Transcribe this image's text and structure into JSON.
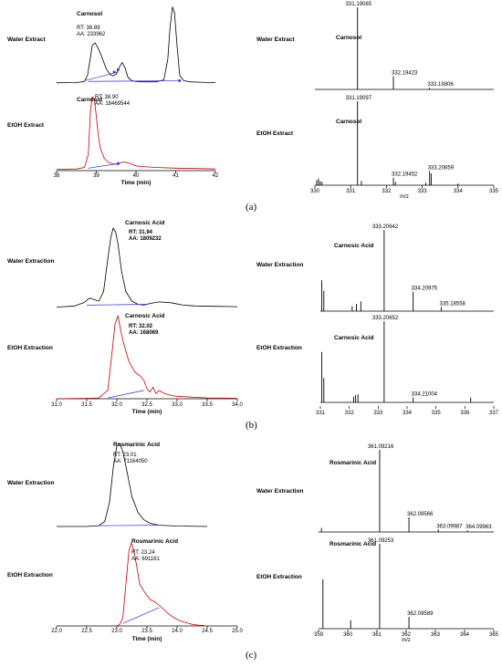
{
  "panel_letters": [
    "(a)",
    "(b)",
    "(c)"
  ],
  "chart_data": [
    {
      "type": "line",
      "panel": "a-chromatogram",
      "xlabel": "Time (min)",
      "xlim": [
        38,
        42
      ],
      "x_ticks": [
        38,
        39,
        40,
        41,
        42
      ],
      "traces": [
        {
          "name": "Water Extract",
          "color": "#000000",
          "label": "Carnosol",
          "rt_text": "RT: 38.89",
          "aa_text": "AA: 233962",
          "x": [
            38.0,
            38.5,
            38.7,
            38.78,
            38.85,
            38.9,
            38.97,
            39.05,
            39.15,
            39.25,
            39.35,
            39.42,
            39.5,
            39.58,
            39.65,
            39.72,
            39.8,
            39.9,
            40.0,
            40.2,
            40.5,
            40.7,
            40.8,
            40.86,
            40.92,
            40.97,
            41.03,
            41.1,
            41.2,
            41.35,
            41.6,
            42.0
          ],
          "y": [
            0.3,
            0.6,
            2,
            10,
            32,
            48,
            51,
            44,
            32,
            18,
            11,
            9,
            11,
            20,
            26,
            20,
            7,
            3,
            2,
            1.5,
            1.5,
            4,
            30,
            72,
            97,
            90,
            50,
            10,
            3,
            1.5,
            1,
            0.5
          ],
          "baselines": [
            [
              [
                38.7,
                3
              ],
              [
                39.55,
                14
              ]
            ],
            [
              [
                38.8,
                2
              ],
              [
                41.1,
                3
              ]
            ]
          ],
          "markers": [
            [
              39.45,
              14
            ],
            [
              39.55,
              17
            ],
            [
              41.1,
              3
            ]
          ]
        },
        {
          "name": "EtOH Extract",
          "color": "#cc0000",
          "label": "Carnosol",
          "rt_text": "RT: 38.90",
          "aa_text": "AA: 18469544",
          "x": [
            38.0,
            38.5,
            38.7,
            38.8,
            38.85,
            38.9,
            38.95,
            39.0,
            39.05,
            39.1,
            39.2,
            39.3,
            39.4,
            39.5,
            39.6,
            39.7,
            39.8,
            39.9,
            40.0,
            40.2,
            40.5,
            41.0,
            41.5,
            42.0
          ],
          "y": [
            0.5,
            1,
            3,
            20,
            75,
            95,
            92,
            70,
            45,
            28,
            15,
            10,
            8,
            7,
            9,
            10,
            9,
            7,
            5,
            4,
            3,
            2,
            1.5,
            1
          ],
          "baselines": [
            [
              [
                38.8,
                2
              ],
              [
                39.55,
                8
              ]
            ]
          ],
          "markers": [
            [
              39.55,
              8
            ]
          ]
        }
      ]
    },
    {
      "type": "bar",
      "panel": "a-mass-spectrum",
      "xlabel": "m/z",
      "xlim": [
        330,
        335
      ],
      "x_ticks": [
        330,
        331,
        332,
        333,
        334,
        335
      ],
      "traces": [
        {
          "name": "Water Extract",
          "label": "Carnosol",
          "peaks": [
            [
              331.19085,
              100
            ],
            [
              332.19423,
              16
            ],
            [
              333.19806,
              2
            ]
          ],
          "peak_labels": [
            "331.19085",
            "332.19423",
            "333.19806"
          ]
        },
        {
          "name": "EtOH Extract",
          "label": "Carnosol",
          "peaks": [
            [
              330.05,
              6
            ],
            [
              330.1,
              8
            ],
            [
              330.15,
              5
            ],
            [
              330.2,
              4
            ],
            [
              331.19097,
              100
            ],
            [
              331.3,
              5
            ],
            [
              332.19452,
              9
            ],
            [
              332.25,
              4
            ],
            [
              333.1,
              3
            ],
            [
              333.20659,
              17
            ],
            [
              333.25,
              14
            ],
            [
              334.0,
              2
            ]
          ],
          "peak_labels": [
            "331.19097",
            "332.19452",
            "333.20659"
          ]
        }
      ]
    },
    {
      "type": "line",
      "panel": "b-chromatogram",
      "xlabel": "Time (min)",
      "xlim": [
        31.0,
        34.0
      ],
      "x_ticks": [
        "31.0",
        "31.5",
        "32.0",
        "32.5",
        "33.0",
        "33.5",
        "34.0"
      ],
      "traces": [
        {
          "name": "Water Extraction",
          "color": "#000000",
          "label": "Carnosic Acid",
          "rt_text": "RT: 31.94",
          "aa_text": "AA: 1809232",
          "x": [
            31.0,
            31.3,
            31.45,
            31.55,
            31.62,
            31.7,
            31.78,
            31.84,
            31.9,
            31.94,
            31.98,
            32.02,
            32.08,
            32.15,
            32.25,
            32.35,
            32.45,
            32.55,
            32.7,
            32.9,
            33.1,
            33.3,
            33.6,
            34.0
          ],
          "y": [
            0.5,
            2,
            6,
            12,
            10,
            8,
            20,
            55,
            88,
            100,
            95,
            80,
            45,
            20,
            8,
            4,
            3,
            5,
            7,
            6,
            3,
            2,
            1.5,
            1
          ],
          "baselines": [
            [
              [
                31.5,
                3
              ],
              [
                32.5,
                4
              ]
            ]
          ],
          "markers": []
        },
        {
          "name": "EtOH Extraction",
          "color": "#cc0000",
          "label": "Carnosic Acid",
          "rt_text": "RT: 32.02",
          "aa_text": "AA: 168069",
          "x": [
            31.0,
            31.5,
            31.7,
            31.85,
            31.92,
            31.97,
            32.02,
            32.07,
            32.12,
            32.2,
            32.3,
            32.38,
            32.45,
            32.5,
            32.55,
            32.6,
            32.65,
            32.7,
            32.8,
            32.9,
            33.0,
            33.5,
            34.0
          ],
          "y": [
            0,
            0.5,
            1,
            10,
            55,
            90,
            100,
            80,
            65,
            45,
            32,
            28,
            22,
            12,
            8,
            14,
            6,
            10,
            6,
            4,
            3,
            1,
            0.5
          ],
          "baselines": [
            [
              [
                31.85,
                1
              ],
              [
                32.45,
                10
              ]
            ]
          ],
          "markers": []
        }
      ]
    },
    {
      "type": "bar",
      "panel": "b-mass-spectrum",
      "xlabel": "",
      "xlim": [
        331,
        337
      ],
      "x_ticks": [
        331,
        332,
        333,
        334,
        335,
        336,
        337
      ],
      "traces": [
        {
          "name": "Water Extraction",
          "label": "Carnosic Acid",
          "peaks": [
            [
              331.05,
              38
            ],
            [
              331.12,
              25
            ],
            [
              332.1,
              6
            ],
            [
              332.25,
              9
            ],
            [
              332.4,
              12
            ],
            [
              333.20642,
              100
            ],
            [
              334.20975,
              24
            ],
            [
              335.18558,
              5
            ]
          ],
          "peak_labels": [
            "333.20642",
            "334.20975",
            "335.18558"
          ]
        },
        {
          "name": "EtOH Extraction",
          "label": "Carnosic Acid",
          "peaks": [
            [
              331.05,
              62
            ],
            [
              331.12,
              30
            ],
            [
              332.15,
              7
            ],
            [
              332.22,
              9
            ],
            [
              332.3,
              10
            ],
            [
              333.20652,
              100
            ],
            [
              334.21004,
              6
            ],
            [
              336.2,
              6
            ]
          ],
          "peak_labels": [
            "333.20652",
            "334.21004"
          ]
        }
      ]
    },
    {
      "type": "line",
      "panel": "c-chromatogram",
      "xlabel": "Time (min)",
      "xlim": [
        22.0,
        25.0
      ],
      "x_ticks": [
        "22.0",
        "22.5",
        "23.0",
        "23.5",
        "24.0",
        "24.5",
        "25.0"
      ],
      "traces": [
        {
          "name": "Water Extraction",
          "color": "#000000",
          "label": "Rosmarinic Acid",
          "rt_text": "RT: 23.01",
          "aa_text": "AA: 71164050",
          "x": [
            22.0,
            22.5,
            22.7,
            22.8,
            22.88,
            22.94,
            23.0,
            23.05,
            23.1,
            23.18,
            23.25,
            23.35,
            23.45,
            23.55,
            23.7,
            24.0,
            24.5
          ],
          "y": [
            0,
            0,
            1,
            6,
            30,
            70,
            97,
            100,
            90,
            62,
            36,
            17,
            8,
            4,
            1.5,
            0.5,
            0
          ],
          "baselines": [
            [
              [
                22.7,
                1
              ],
              [
                23.7,
                1.5
              ]
            ]
          ],
          "markers": []
        },
        {
          "name": "EtOH Extraction",
          "color": "#cc0000",
          "label": "Rosmarinic Acid",
          "rt_text": "RT: 23.24",
          "aa_text": "AA: 691161",
          "x": [
            23.0,
            23.05,
            23.1,
            23.15,
            23.2,
            23.24,
            23.28,
            23.33,
            23.38,
            23.45,
            23.55,
            23.65,
            23.75,
            23.85,
            23.95,
            24.05,
            24.15,
            24.25,
            24.35,
            24.45
          ],
          "y": [
            0,
            2,
            10,
            50,
            90,
            100,
            92,
            72,
            50,
            42,
            32,
            28,
            22,
            15,
            10,
            6,
            4,
            2,
            1,
            0.5
          ],
          "baselines": [
            [
              [
                23.1,
                3
              ],
              [
                23.7,
                22
              ]
            ]
          ],
          "markers": []
        }
      ]
    },
    {
      "type": "bar",
      "panel": "c-mass-spectrum",
      "xlabel": "m/z",
      "xlim": [
        359,
        365
      ],
      "x_ticks": [
        359,
        360,
        361,
        362,
        363,
        364,
        365
      ],
      "traces": [
        {
          "name": "Water Extraction",
          "label": "Rosmarinic Acid",
          "peaks": [
            [
              359.1,
              5
            ],
            [
              361.09216,
              100
            ],
            [
              362.09566,
              18
            ],
            [
              363.09987,
              3
            ],
            [
              364.09983,
              2
            ]
          ],
          "peak_labels": [
            "361.09216",
            "362.09566",
            "363.09987",
            "364.09983"
          ]
        },
        {
          "name": "EtOH Extraction",
          "label": "Rosmarinic Acid",
          "peaks": [
            [
              359.15,
              58
            ],
            [
              360.1,
              10
            ],
            [
              361.09253,
              100
            ],
            [
              362.09589,
              14
            ]
          ],
          "peak_labels": [
            "361.09253",
            "362.09589"
          ]
        }
      ]
    }
  ]
}
